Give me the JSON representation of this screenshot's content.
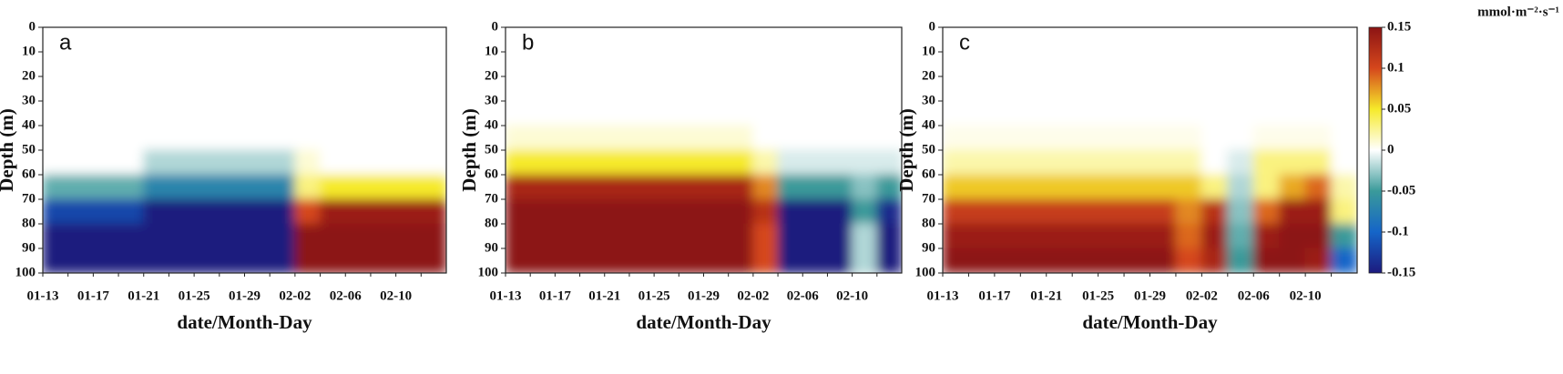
{
  "chart_data": [
    {
      "type": "heatmap",
      "panel_label": "a",
      "xlabel": "date/Month-Day",
      "ylabel": "Depth (m)",
      "categories": [
        "01-13",
        null,
        "01-17",
        null,
        "01-21",
        null,
        "01-25",
        null,
        "01-29",
        null,
        "02-02",
        null,
        "02-06",
        null,
        "02-10",
        null
      ],
      "ylim": [
        0,
        100
      ],
      "invert_y": true,
      "yticks": [
        0,
        10,
        20,
        30,
        40,
        50,
        60,
        70,
        80,
        90,
        100
      ],
      "clim": [
        -0.15,
        0.15
      ],
      "colorscale": [
        "#1c1a7e",
        "#1565c8",
        "#3a9a9a",
        "#ffffff",
        "#f6ea2a",
        "#d5471c",
        "#8c1414"
      ],
      "values": [
        [
          0,
          0,
          0,
          0,
          0,
          0,
          0,
          0,
          0,
          0,
          0,
          0,
          0,
          0,
          0,
          0
        ],
        [
          0,
          0,
          0,
          0,
          0,
          0,
          0,
          0,
          0,
          0,
          0,
          0,
          0,
          0,
          0,
          0
        ],
        [
          0,
          0,
          0,
          0,
          0,
          0,
          0,
          0,
          0,
          0,
          0,
          0,
          0,
          0,
          0,
          0
        ],
        [
          0,
          0,
          0,
          0,
          0,
          0,
          0,
          0,
          0,
          0,
          0,
          0,
          0,
          0,
          0,
          0
        ],
        [
          0,
          0,
          0,
          0,
          0,
          0,
          0,
          0,
          0,
          0,
          0,
          0,
          0,
          0,
          0,
          0
        ],
        [
          0,
          0,
          0,
          0,
          -0.02,
          -0.02,
          -0.02,
          -0.02,
          -0.02,
          -0.02,
          0.01,
          0,
          0,
          0,
          0,
          0
        ],
        [
          -0.04,
          -0.04,
          -0.04,
          -0.04,
          -0.07,
          -0.07,
          -0.07,
          -0.07,
          -0.07,
          -0.07,
          0.03,
          0.05,
          0.05,
          0.05,
          0.05,
          0.05
        ],
        [
          -0.12,
          -0.12,
          -0.12,
          -0.12,
          -0.15,
          -0.15,
          -0.15,
          -0.15,
          -0.15,
          -0.15,
          0.1,
          0.14,
          0.14,
          0.14,
          0.14,
          0.14
        ],
        [
          -0.15,
          -0.15,
          -0.15,
          -0.15,
          -0.15,
          -0.15,
          -0.15,
          -0.15,
          -0.15,
          -0.15,
          0.15,
          0.15,
          0.15,
          0.15,
          0.15,
          0.15
        ],
        [
          -0.15,
          -0.15,
          -0.15,
          -0.15,
          -0.15,
          -0.15,
          -0.15,
          -0.15,
          -0.15,
          -0.15,
          0.15,
          0.15,
          0.15,
          0.15,
          0.15,
          0.15
        ]
      ]
    },
    {
      "type": "heatmap",
      "panel_label": "b",
      "xlabel": "date/Month-Day",
      "ylabel": "Depth (m)",
      "categories": [
        "01-13",
        null,
        "01-17",
        null,
        "01-21",
        null,
        "01-25",
        null,
        "01-29",
        null,
        "02-02",
        null,
        "02-06",
        null,
        "02-10",
        null
      ],
      "ylim": [
        0,
        100
      ],
      "invert_y": true,
      "yticks": [
        0,
        10,
        20,
        30,
        40,
        50,
        60,
        70,
        80,
        90,
        100
      ],
      "clim": [
        -0.15,
        0.15
      ],
      "colorscale": [
        "#1c1a7e",
        "#1565c8",
        "#3a9a9a",
        "#ffffff",
        "#f6ea2a",
        "#d5471c",
        "#8c1414"
      ],
      "values": [
        [
          0,
          0,
          0,
          0,
          0,
          0,
          0,
          0,
          0,
          0,
          0,
          0,
          0,
          0,
          0,
          0
        ],
        [
          0,
          0,
          0,
          0,
          0,
          0,
          0,
          0,
          0,
          0,
          0,
          0,
          0,
          0,
          0,
          0
        ],
        [
          0,
          0,
          0,
          0,
          0,
          0,
          0,
          0,
          0,
          0,
          0,
          0,
          0,
          0,
          0,
          0
        ],
        [
          0,
          0,
          0,
          0,
          0,
          0,
          0,
          0,
          0,
          0,
          0,
          0,
          0,
          0,
          0,
          0
        ],
        [
          0.01,
          0.01,
          0.01,
          0.01,
          0.01,
          0.01,
          0.01,
          0.01,
          0.01,
          0.01,
          0,
          0,
          0,
          0,
          0,
          0
        ],
        [
          0.05,
          0.05,
          0.05,
          0.05,
          0.05,
          0.05,
          0.05,
          0.05,
          0.05,
          0.05,
          0.02,
          -0.01,
          -0.01,
          -0.01,
          -0.01,
          -0.01
        ],
        [
          0.13,
          0.13,
          0.13,
          0.13,
          0.13,
          0.13,
          0.13,
          0.13,
          0.13,
          0.13,
          0.08,
          -0.05,
          -0.05,
          -0.05,
          -0.03,
          -0.05
        ],
        [
          0.15,
          0.15,
          0.15,
          0.15,
          0.15,
          0.15,
          0.15,
          0.15,
          0.15,
          0.15,
          0.12,
          -0.15,
          -0.15,
          -0.15,
          -0.05,
          -0.14
        ],
        [
          0.15,
          0.15,
          0.15,
          0.15,
          0.15,
          0.15,
          0.15,
          0.15,
          0.15,
          0.15,
          0.1,
          -0.15,
          -0.15,
          -0.15,
          -0.02,
          -0.15
        ],
        [
          0.15,
          0.15,
          0.15,
          0.15,
          0.15,
          0.15,
          0.15,
          0.15,
          0.15,
          0.15,
          0.1,
          -0.15,
          -0.15,
          -0.15,
          -0.02,
          -0.15
        ]
      ]
    },
    {
      "type": "heatmap",
      "panel_label": "c",
      "xlabel": "date/Month-Day",
      "ylabel": "Depth (m)",
      "categories": [
        "01-13",
        null,
        "01-17",
        null,
        "01-21",
        null,
        "01-25",
        null,
        "01-29",
        null,
        "02-02",
        null,
        "02-06",
        null,
        "02-10",
        null
      ],
      "ylim": [
        0,
        100
      ],
      "invert_y": true,
      "yticks": [
        0,
        10,
        20,
        30,
        40,
        50,
        60,
        70,
        80,
        90,
        100
      ],
      "clim": [
        -0.15,
        0.15
      ],
      "colorscale": [
        "#1c1a7e",
        "#1565c8",
        "#3a9a9a",
        "#ffffff",
        "#f6ea2a",
        "#d5471c",
        "#8c1414"
      ],
      "colorbar": true,
      "colorbar_label": "mmol·m⁻²·s⁻¹",
      "cticks": [
        0.15,
        0.1,
        0.05,
        0,
        -0.05,
        -0.1,
        -0.15
      ],
      "values": [
        [
          0,
          0,
          0,
          0,
          0,
          0,
          0,
          0,
          0,
          0,
          0,
          0,
          0,
          0,
          0,
          0
        ],
        [
          0,
          0,
          0,
          0,
          0,
          0,
          0,
          0,
          0,
          0,
          0,
          0,
          0,
          0,
          0,
          0
        ],
        [
          0,
          0,
          0,
          0,
          0,
          0,
          0,
          0,
          0,
          0,
          0,
          0,
          0,
          0,
          0,
          0
        ],
        [
          0,
          0,
          0,
          0,
          0,
          0,
          0,
          0,
          0,
          0,
          0,
          0,
          0,
          0,
          0,
          0
        ],
        [
          0.005,
          0.005,
          0.005,
          0.005,
          0.005,
          0.005,
          0.005,
          0.005,
          0.005,
          0.005,
          0,
          0,
          0.005,
          0.005,
          0.005,
          0
        ],
        [
          0.02,
          0.02,
          0.02,
          0.02,
          0.02,
          0.02,
          0.02,
          0.02,
          0.02,
          0.02,
          0,
          -0.01,
          0.03,
          0.03,
          0.03,
          0
        ],
        [
          0.06,
          0.06,
          0.06,
          0.06,
          0.06,
          0.06,
          0.06,
          0.06,
          0.06,
          0.06,
          0.03,
          -0.02,
          0.03,
          0.07,
          0.09,
          0.02
        ],
        [
          0.11,
          0.11,
          0.11,
          0.11,
          0.11,
          0.11,
          0.11,
          0.11,
          0.11,
          0.08,
          0.12,
          -0.03,
          0.09,
          0.14,
          0.14,
          0.03
        ],
        [
          0.14,
          0.14,
          0.14,
          0.14,
          0.14,
          0.14,
          0.14,
          0.14,
          0.14,
          0.09,
          0.14,
          -0.04,
          0.14,
          0.15,
          0.15,
          -0.05
        ],
        [
          0.15,
          0.15,
          0.15,
          0.15,
          0.15,
          0.15,
          0.15,
          0.15,
          0.15,
          0.1,
          0.13,
          -0.05,
          0.15,
          0.15,
          0.14,
          -0.1
        ]
      ]
    }
  ]
}
